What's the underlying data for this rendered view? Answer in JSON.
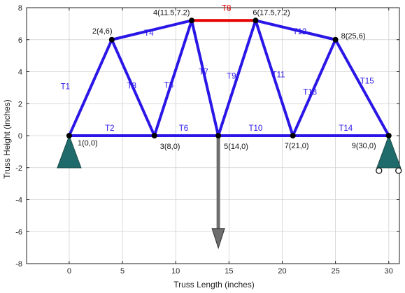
{
  "chart_data": {
    "type": "truss-diagram",
    "title": "",
    "xlabel": "Truss Length (inches)",
    "ylabel": "Truss Height (inches)",
    "xlim": [
      -4,
      31
    ],
    "ylim": [
      -8,
      8
    ],
    "xticks": [
      "0",
      "5",
      "10",
      "15",
      "20",
      "25",
      "30"
    ],
    "xtick_values": [
      0,
      5,
      10,
      15,
      20,
      25,
      30
    ],
    "yticks": [
      "8",
      "6",
      "4",
      "2",
      "0",
      "-2",
      "-4",
      "-6",
      "-8"
    ],
    "ytick_values": [
      8,
      6,
      4,
      2,
      0,
      -2,
      -4,
      -6,
      -8
    ],
    "grid": true,
    "colors": {
      "member": "#2a16e6",
      "member_label": "#2a16e6",
      "highlight_member": "#e60000",
      "support": "#1f6b6b",
      "load_arrow": "#6e6e6e",
      "node": "#000000",
      "grid": "#d0d0d0"
    },
    "nodes": [
      {
        "id": 1,
        "label": "1(0,0)",
        "x": 0,
        "y": 0
      },
      {
        "id": 2,
        "label": "2(4,6)",
        "x": 4,
        "y": 6
      },
      {
        "id": 3,
        "label": "3(8,0)",
        "x": 8,
        "y": 0
      },
      {
        "id": 4,
        "label": "4(11.5,7.2)",
        "x": 11.5,
        "y": 7.2
      },
      {
        "id": 5,
        "label": "5(14,0)",
        "x": 14,
        "y": 0
      },
      {
        "id": 6,
        "label": "6(17.5,7.2)",
        "x": 17.5,
        "y": 7.2
      },
      {
        "id": 7,
        "label": "7(21,0)",
        "x": 21,
        "y": 0
      },
      {
        "id": 8,
        "label": "8(25,6)",
        "x": 25,
        "y": 6
      },
      {
        "id": 9,
        "label": "9(30,0)",
        "x": 30,
        "y": 0
      }
    ],
    "members": [
      {
        "label": "T1",
        "from": 1,
        "to": 2
      },
      {
        "label": "T2",
        "from": 1,
        "to": 3
      },
      {
        "label": "T3",
        "from": 2,
        "to": 3
      },
      {
        "label": "T4",
        "from": 2,
        "to": 4
      },
      {
        "label": "T5",
        "from": 3,
        "to": 4
      },
      {
        "label": "T6",
        "from": 3,
        "to": 5
      },
      {
        "label": "T7",
        "from": 4,
        "to": 5
      },
      {
        "label": "T8",
        "from": 4,
        "to": 6,
        "highlight": true
      },
      {
        "label": "T9",
        "from": 5,
        "to": 6
      },
      {
        "label": "T10",
        "from": 5,
        "to": 7
      },
      {
        "label": "T11",
        "from": 6,
        "to": 7
      },
      {
        "label": "T12",
        "from": 6,
        "to": 8
      },
      {
        "label": "T13",
        "from": 7,
        "to": 8
      },
      {
        "label": "T14",
        "from": 7,
        "to": 9
      },
      {
        "label": "T15",
        "from": 8,
        "to": 9
      }
    ],
    "supports": [
      {
        "node": 1,
        "kind": "pin"
      },
      {
        "node": 9,
        "kind": "roller"
      }
    ],
    "load": {
      "node": 5,
      "direction": "down",
      "to_y": -6.5
    }
  }
}
